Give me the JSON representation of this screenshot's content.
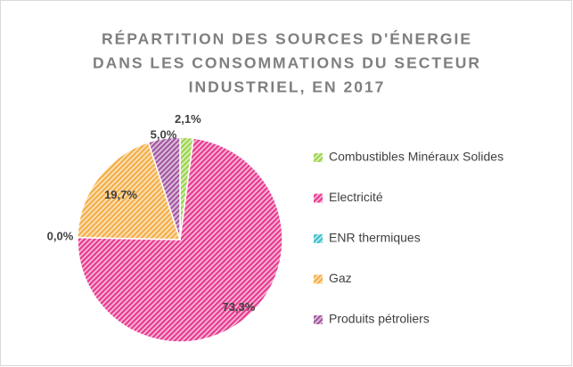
{
  "chart_data": {
    "type": "pie",
    "title": [
      "RÉPARTITION DES SOURCES D'ÉNERGIE",
      "DANS LES CONSOMMATIONS DU SECTEUR",
      "INDUSTRIEL, EN 2017"
    ],
    "categories": [
      "Combustibles Minéraux Solides",
      "Electricité",
      "ENR thermiques",
      "Gaz",
      "Produits pétroliers"
    ],
    "values": [
      2.1,
      73.3,
      0.0,
      19.7,
      5.0
    ],
    "value_labels": [
      "2,1%",
      "73,3%",
      "0,0%",
      "19,7%",
      "5,0%"
    ],
    "colors": [
      "#9bd34a",
      "#e8388f",
      "#3cc0c8",
      "#f4ad45",
      "#a2569f"
    ],
    "legend": "right"
  }
}
